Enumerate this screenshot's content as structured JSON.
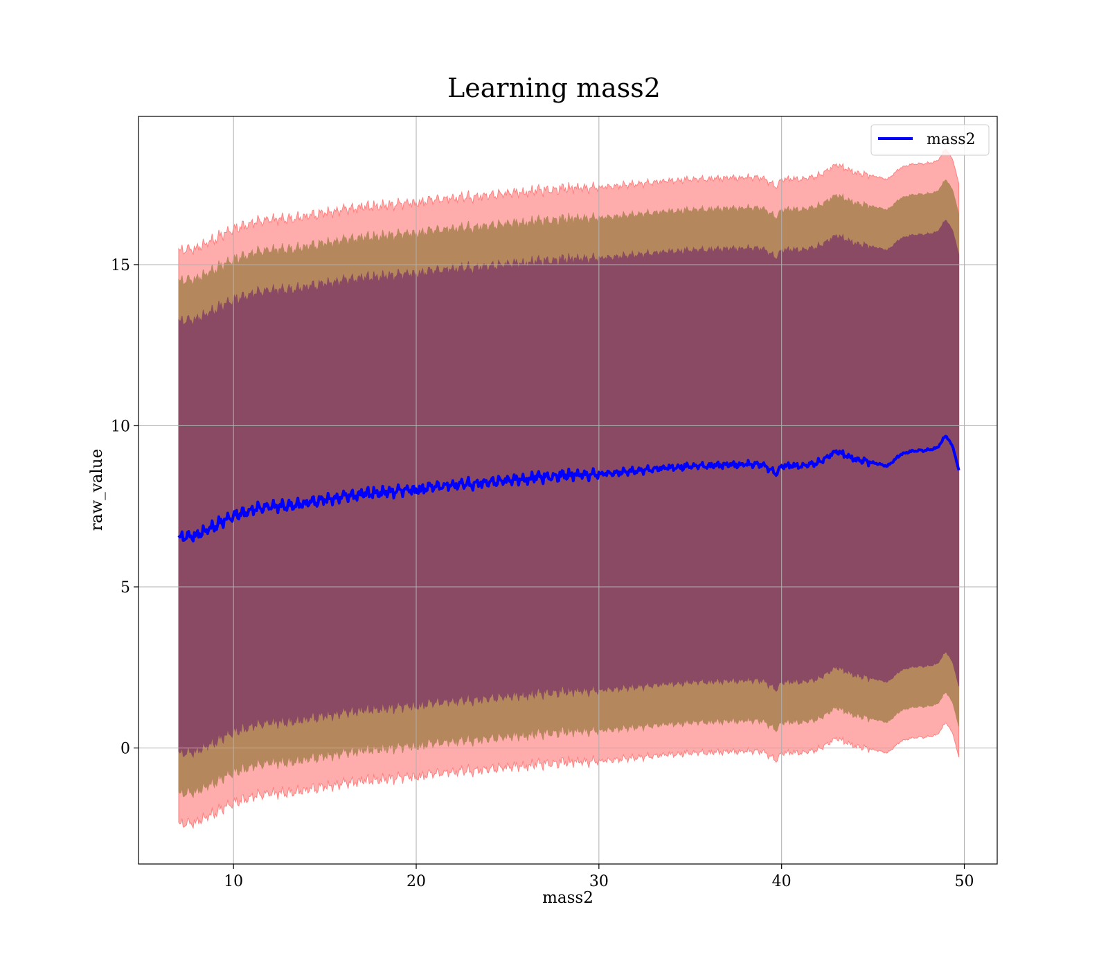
{
  "chart_data": {
    "type": "area",
    "title": "Learning mass2",
    "xlabel": "mass2",
    "ylabel": "raw_value",
    "xlim": [
      4.8,
      51.8
    ],
    "ylim": [
      -3.6,
      19.6
    ],
    "xticks": [
      10,
      20,
      30,
      40,
      50
    ],
    "yticks": [
      0,
      5,
      10,
      15
    ],
    "grid": true,
    "legend_position": "top-right",
    "band_colors": [
      "#ff8080",
      "#b5875d",
      "#8b4a63"
    ],
    "series": [
      {
        "name": "mass2",
        "color": "#0000ff",
        "x": [
          7.0,
          8.0,
          9.0,
          10.0,
          11.0,
          12.0,
          13.0,
          14.0,
          15.0,
          16.0,
          17.0,
          18.0,
          19.0,
          20.0,
          21.0,
          22.0,
          23.0,
          24.0,
          25.0,
          26.0,
          27.0,
          28.0,
          29.0,
          30.0,
          31.0,
          32.0,
          33.0,
          34.0,
          35.0,
          36.0,
          37.0,
          38.0,
          39.0,
          39.7,
          40.0,
          41.0,
          42.0,
          43.0,
          44.0,
          45.0,
          45.8,
          46.5,
          47.0,
          48.0,
          48.5,
          49.0,
          49.4,
          49.7
        ],
        "y": [
          6.5,
          6.6,
          6.9,
          7.2,
          7.4,
          7.5,
          7.5,
          7.6,
          7.7,
          7.8,
          7.9,
          7.9,
          8.0,
          8.0,
          8.1,
          8.15,
          8.2,
          8.25,
          8.3,
          8.35,
          8.4,
          8.45,
          8.5,
          8.5,
          8.55,
          8.6,
          8.65,
          8.7,
          8.75,
          8.75,
          8.8,
          8.8,
          8.8,
          8.5,
          8.75,
          8.75,
          8.85,
          9.2,
          8.95,
          8.85,
          8.75,
          9.1,
          9.2,
          9.25,
          9.3,
          9.7,
          9.3,
          8.6
        ],
        "bands": [
          {
            "sigma": 1,
            "half_width": 6.7
          },
          {
            "sigma": 2,
            "half_width": 7.95
          },
          {
            "sigma": 3,
            "half_width": 8.9
          }
        ]
      }
    ]
  }
}
